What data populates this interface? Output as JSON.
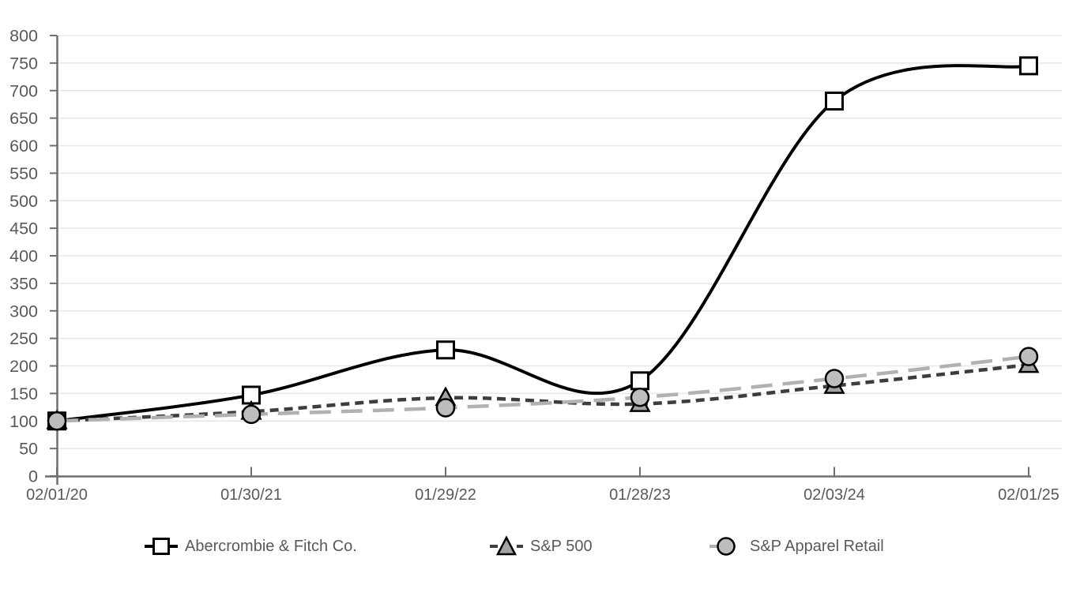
{
  "chart_data": {
    "type": "line",
    "title": "",
    "xlabel": "",
    "ylabel": "",
    "categories": [
      "02/01/20",
      "01/30/21",
      "01/29/22",
      "01/28/23",
      "02/03/24",
      "02/01/25"
    ],
    "series": [
      {
        "name": "Abercrombie & Fitch Co.",
        "values": [
          100,
          147,
          229,
          173,
          681,
          745
        ],
        "line_color": "#000000",
        "line_style": "solid",
        "line_width": 4,
        "marker": "square",
        "marker_fill": "#ffffff",
        "marker_stroke": "#000000"
      },
      {
        "name": "S&P 500",
        "values": [
          100,
          117,
          142,
          131,
          164,
          202
        ],
        "line_color": "#3d3d3d",
        "line_style": "short-dash",
        "line_width": 4.5,
        "marker": "triangle",
        "marker_fill": "#a3a3a3",
        "marker_stroke": "#000000"
      },
      {
        "name": "S&P Apparel Retail",
        "values": [
          100,
          112,
          124,
          143,
          177,
          217
        ],
        "line_color": "#b1b1b1",
        "line_style": "long-dash",
        "line_width": 4.5,
        "marker": "circle",
        "marker_fill": "#bdbdbd",
        "marker_stroke": "#000000"
      }
    ],
    "ylim": [
      0,
      800
    ],
    "ytick_step": 50,
    "grid": true,
    "legend_position": "bottom",
    "colors": {
      "grid_color": "#e7e7e7",
      "axis_color": "#6f6f6f",
      "label_color": "#595959",
      "background": "#ffffff"
    }
  }
}
